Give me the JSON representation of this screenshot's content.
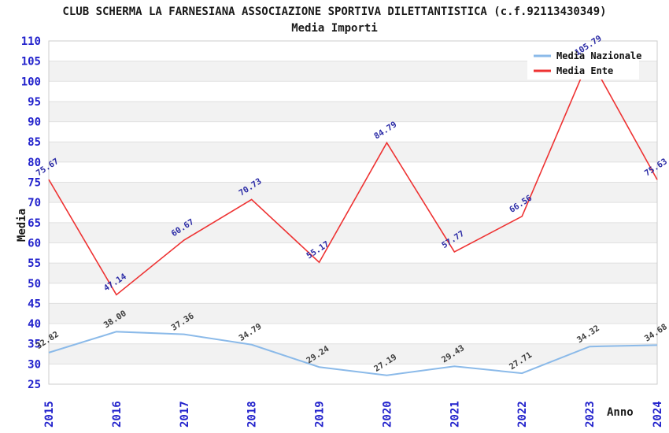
{
  "title": "CLUB SCHERMA LA FARNESIANA ASSOCIAZIONE SPORTIVA DILETTANTISTICA (c.f.92113430349)",
  "subtitle": "Media Importi",
  "axes": {
    "y_title": "Media",
    "x_title": "Anno",
    "y_ticks": [
      25,
      30,
      35,
      40,
      45,
      50,
      55,
      60,
      65,
      70,
      75,
      80,
      85,
      90,
      95,
      100,
      105,
      110
    ],
    "x_ticks": [
      2015,
      2016,
      2017,
      2018,
      2019,
      2020,
      2021,
      2022,
      2023,
      2024
    ],
    "tick_color": "#2222cc"
  },
  "legend": {
    "position": "top-right",
    "items": [
      {
        "label": "Media Nazionale",
        "color": "#8bbae9"
      },
      {
        "label": "Media Ente",
        "color": "#ee3232"
      }
    ]
  },
  "chart_data": {
    "type": "line",
    "title": "Media Importi",
    "xlabel": "Anno",
    "ylabel": "Media",
    "x": [
      2015,
      2016,
      2017,
      2018,
      2019,
      2020,
      2021,
      2022,
      2023,
      2024
    ],
    "series": [
      {
        "name": "Media Nazionale",
        "color": "#8bbae9",
        "label_color": "#3d3d3d",
        "values": [
          32.82,
          38.0,
          37.36,
          34.79,
          29.24,
          27.19,
          29.43,
          27.71,
          34.32,
          34.68
        ],
        "labels": [
          "32.82",
          "38.00",
          "37.36",
          "34.79",
          "29.24",
          "27.19",
          "29.43",
          "27.71",
          "34.32",
          "34.68"
        ]
      },
      {
        "name": "Media Ente",
        "color": "#ee3232",
        "label_color": "#2b2ba6",
        "values": [
          75.67,
          47.14,
          60.67,
          70.73,
          55.17,
          84.79,
          57.77,
          66.56,
          105.79,
          75.63
        ],
        "labels": [
          "75.67",
          "47.14",
          "60.67",
          "70.73",
          "55.17",
          "84.79",
          "57.77",
          "66.56",
          "105.79",
          "75.63"
        ]
      }
    ],
    "ylim": [
      25,
      110
    ],
    "y_step": 5,
    "grid": true,
    "legend_position": "top-right",
    "band_colors": [
      "#ffffff",
      "#f2f2f2"
    ],
    "grid_color": "#e0e0e0",
    "border_color": "#cccccc"
  }
}
